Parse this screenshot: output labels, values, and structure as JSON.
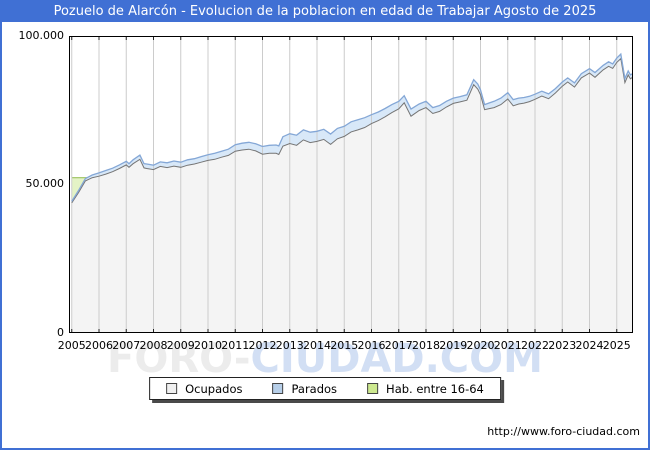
{
  "titlebar": {
    "text": "Pozuelo de Alarcón - Evolucion de la poblacion en edad de Trabajar Agosto de 2025"
  },
  "watermark": {
    "part1": "FORO-",
    "part2": "CIUDAD.COM"
  },
  "footer": {
    "url": "http://www.foro-ciudad.com"
  },
  "colors": {
    "accent_blue": "#4070d4",
    "grid": "#cccccc",
    "plot_border": "#000000",
    "tick": "#222222"
  },
  "legend": {
    "items": [
      {
        "label": "Ocupados",
        "fill": "#f0f0f0",
        "border": "#444444"
      },
      {
        "label": "Parados",
        "fill": "#b7cfe9",
        "border": "#444444"
      },
      {
        "label": "Hab. entre 16-64",
        "fill": "#cde98f",
        "border": "#444444"
      }
    ]
  },
  "chart_data": {
    "type": "area",
    "title": "Pozuelo de Alarcón - Evolucion de la poblacion en edad de Trabajar Agosto de 2025",
    "stacking": "Parados stacked on top of Ocupados; Hab. entre 16-64 drawn behind the stack and visible only where it exceeds it (early 2005-2006)",
    "grid": "vertical line per year, no horizontal gridlines",
    "legend_position": "bottom-center",
    "x_axis": {
      "min": 2004.9,
      "max": 2025.6,
      "years": [
        "2005",
        "2006",
        "2007",
        "2008",
        "2009",
        "2010",
        "2011",
        "2012",
        "2013",
        "2014",
        "2015",
        "2016",
        "2017",
        "2018",
        "2019",
        "2020",
        "2021",
        "2022",
        "2023",
        "2024",
        "2025"
      ]
    },
    "y_axis": {
      "min": 0,
      "max": 100000,
      "ticks": [
        {
          "label": "100.000",
          "value": 100000
        },
        {
          "label": "50.000",
          "value": 50000
        },
        {
          "label": "0",
          "value": 0
        }
      ]
    },
    "x": [
      2005.0,
      2005.25,
      2005.5,
      2005.75,
      2006.0,
      2006.25,
      2006.5,
      2006.75,
      2007.0,
      2007.1,
      2007.25,
      2007.5,
      2007.65,
      2007.75,
      2008.0,
      2008.25,
      2008.5,
      2008.75,
      2009.0,
      2009.25,
      2009.5,
      2009.75,
      2010.0,
      2010.25,
      2010.5,
      2010.75,
      2011.0,
      2011.25,
      2011.5,
      2011.75,
      2012.0,
      2012.25,
      2012.5,
      2012.6,
      2012.75,
      2013.0,
      2013.25,
      2013.5,
      2013.75,
      2014.0,
      2014.25,
      2014.5,
      2014.75,
      2015.0,
      2015.25,
      2015.5,
      2015.75,
      2016.0,
      2016.25,
      2016.5,
      2016.75,
      2017.0,
      2017.2,
      2017.45,
      2017.75,
      2018.0,
      2018.25,
      2018.5,
      2018.75,
      2019.0,
      2019.25,
      2019.5,
      2019.75,
      2019.9,
      2020.0,
      2020.15,
      2020.3,
      2020.5,
      2020.75,
      2021.0,
      2021.2,
      2021.4,
      2021.6,
      2021.8,
      2022.0,
      2022.25,
      2022.5,
      2022.75,
      2023.0,
      2023.2,
      2023.45,
      2023.7,
      2024.0,
      2024.2,
      2024.5,
      2024.7,
      2024.85,
      2025.0,
      2025.15,
      2025.3,
      2025.42,
      2025.5,
      2025.58
    ],
    "series": [
      {
        "name": "Ocupados",
        "line_color": "#757575",
        "fill_color": "#f4f4f4",
        "values": [
          43800,
          47300,
          51200,
          52300,
          52800,
          53500,
          54300,
          55400,
          56600,
          55800,
          57000,
          58500,
          55600,
          55400,
          55000,
          56100,
          55700,
          56200,
          55800,
          56500,
          56900,
          57500,
          58100,
          58500,
          59200,
          59800,
          61200,
          61600,
          61900,
          61300,
          60200,
          60500,
          60500,
          60100,
          62900,
          63800,
          63200,
          65000,
          64100,
          64500,
          65200,
          63500,
          65400,
          66200,
          67700,
          68400,
          69200,
          70500,
          71500,
          72800,
          74200,
          75500,
          77500,
          73000,
          74900,
          75900,
          73900,
          74600,
          76100,
          77300,
          77800,
          78400,
          83600,
          82100,
          80200,
          75200,
          75500,
          75900,
          76900,
          78800,
          76500,
          77100,
          77400,
          77900,
          78700,
          79800,
          78900,
          80800,
          83100,
          84500,
          82800,
          85900,
          87500,
          86100,
          88600,
          89800,
          89100,
          91100,
          92400,
          84300,
          86900,
          85600,
          86100
        ]
      },
      {
        "name": "Parados",
        "line_color": "#84a7d6",
        "fill_color": "#d8e8f8",
        "values": [
          500,
          700,
          800,
          900,
          1100,
          1200,
          1200,
          1200,
          1200,
          1200,
          1300,
          1400,
          1400,
          1500,
          1500,
          1500,
          1600,
          1700,
          1700,
          1800,
          1800,
          1900,
          1900,
          2000,
          2000,
          2100,
          2200,
          2300,
          2300,
          2400,
          2600,
          2700,
          2800,
          2900,
          3200,
          3300,
          3400,
          3400,
          3500,
          3400,
          3400,
          3500,
          3500,
          3400,
          3400,
          3400,
          3300,
          3000,
          2900,
          2800,
          2700,
          2500,
          2400,
          2400,
          2200,
          2100,
          2000,
          2000,
          1900,
          1800,
          1800,
          1800,
          1700,
          1700,
          1700,
          1700,
          1900,
          2100,
          2200,
          2100,
          2100,
          2000,
          1900,
          1800,
          1700,
          1600,
          1600,
          1500,
          1400,
          1400,
          1400,
          1400,
          1500,
          1600,
          1500,
          1500,
          1500,
          1500,
          1500,
          1400,
          1300,
          1300,
          1200
        ]
      },
      {
        "name": "Hab. entre 16-64",
        "line_color": "#9cc25e",
        "fill_color": "#e4f3c6",
        "x": [
          2005.0,
          2005.7
        ],
        "values": [
          52300,
          52300
        ]
      }
    ]
  }
}
